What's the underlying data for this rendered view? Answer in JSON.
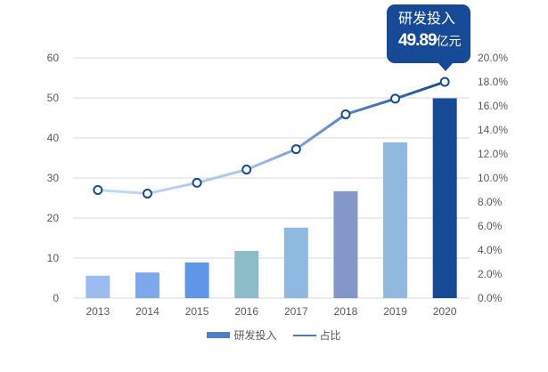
{
  "chart_data": {
    "type": "bar+line",
    "title": "",
    "categories": [
      "2013",
      "2014",
      "2015",
      "2016",
      "2017",
      "2018",
      "2019",
      "2020"
    ],
    "series": [
      {
        "name": "研发投入",
        "type": "bar",
        "axis": "left",
        "values": [
          5.6,
          6.4,
          8.9,
          11.8,
          17.6,
          26.7,
          38.9,
          49.89
        ],
        "colors": [
          "#9abcf0",
          "#7ea8ec",
          "#5f97e8",
          "#8bbcc8",
          "#90b9e0",
          "#8396c8",
          "#90b9e0",
          "#174a96"
        ]
      },
      {
        "name": "占比",
        "type": "line",
        "axis": "right",
        "values": [
          9.0,
          8.7,
          9.6,
          10.7,
          12.4,
          15.3,
          16.6,
          18.0
        ],
        "unit": "%"
      }
    ],
    "left_axis": {
      "ticks": [
        "0",
        "10",
        "20",
        "30",
        "40",
        "50",
        "60"
      ],
      "ylim": [
        0,
        60
      ]
    },
    "right_axis": {
      "ticks": [
        "0.0%",
        "2.0%",
        "4.0%",
        "6.0%",
        "8.0%",
        "10.0%",
        "12.0%",
        "14.0%",
        "16.0%",
        "18.0%",
        "20.0%"
      ],
      "ylim": [
        0,
        20
      ]
    },
    "grid": true,
    "legend_position": "bottom",
    "annotation": {
      "category": "2020",
      "title": "研发投入",
      "value": "49.89",
      "unit": "亿元"
    }
  },
  "legend": {
    "bar_label": "研发投入",
    "line_label": "占比"
  },
  "tooltip": {
    "title": "研发投入",
    "value": "49.89",
    "unit": "亿元"
  }
}
